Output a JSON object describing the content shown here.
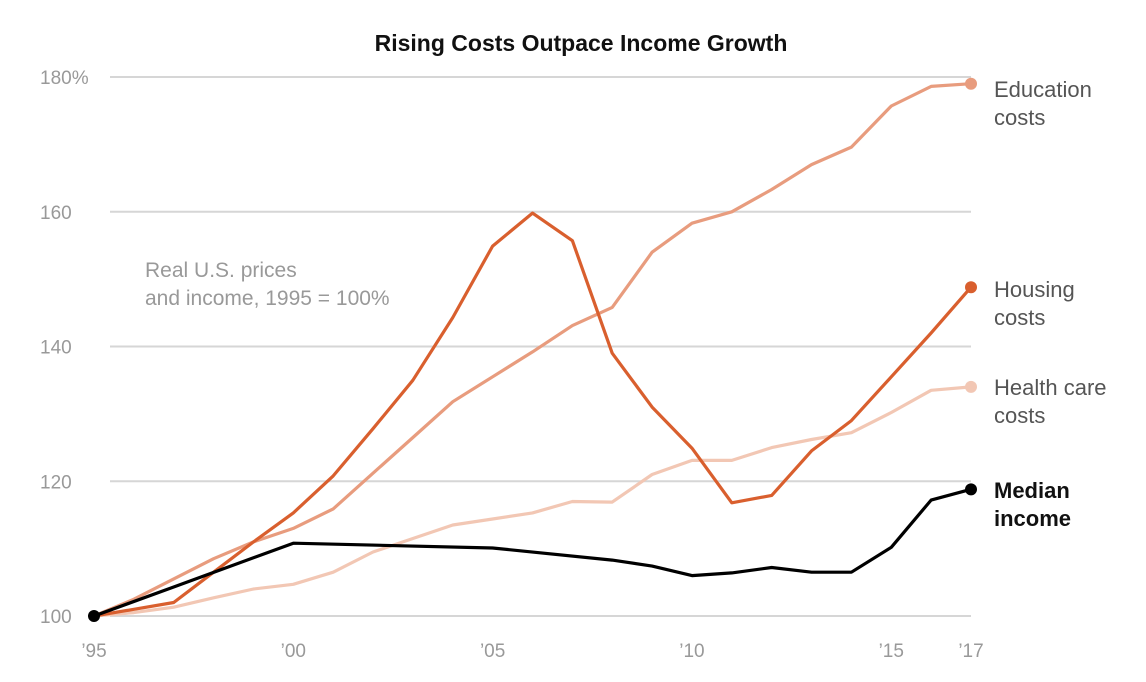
{
  "chart_data": {
    "type": "line",
    "title": "Rising Costs Outpace Income Growth",
    "annotation": [
      "Real U.S. prices",
      "and income, 1995 = 100%"
    ],
    "xlim": [
      1995,
      2017
    ],
    "ylim": [
      100,
      180
    ],
    "x_ticks": [
      {
        "value": 1995,
        "label": "’95"
      },
      {
        "value": 2000,
        "label": "’00"
      },
      {
        "value": 2005,
        "label": "’05"
      },
      {
        "value": 2010,
        "label": "’10"
      },
      {
        "value": 2015,
        "label": "’15"
      },
      {
        "value": 2017,
        "label": "’17"
      }
    ],
    "y_ticks": [
      {
        "value": 100,
        "label": "100"
      },
      {
        "value": 120,
        "label": "120"
      },
      {
        "value": 140,
        "label": "140"
      },
      {
        "value": 160,
        "label": "160"
      },
      {
        "value": 180,
        "label": "180%"
      }
    ],
    "grid": true,
    "series": [
      {
        "key": "health",
        "label_lines": [
          "Health care",
          "costs"
        ],
        "color": "#f2c7b4",
        "label_bold": false,
        "x": [
          1995,
          1996,
          1997,
          1998,
          1999,
          2000,
          2001,
          2002,
          2003,
          2004,
          2005,
          2006,
          2007,
          2008,
          2009,
          2010,
          2011,
          2012,
          2013,
          2014,
          2015,
          2016,
          2017
        ],
        "y": [
          100,
          100.5,
          101.3,
          102.7,
          104,
          104.7,
          106.5,
          109.5,
          111.5,
          113.5,
          114.4,
          115.3,
          117,
          116.9,
          121,
          123.1,
          123.1,
          125,
          126.2,
          127.2,
          130.2,
          133.5,
          134
        ]
      },
      {
        "key": "education",
        "label_lines": [
          "Education",
          "costs"
        ],
        "color": "#e89c7e",
        "label_bold": false,
        "x": [
          1995,
          1996,
          1997,
          1998,
          1999,
          2000,
          2001,
          2002,
          2003,
          2004,
          2005,
          2006,
          2007,
          2008,
          2009,
          2010,
          2011,
          2012,
          2013,
          2014,
          2015,
          2016,
          2017
        ],
        "y": [
          100,
          102.5,
          105.5,
          108.5,
          111,
          113,
          115.9,
          121.2,
          126.5,
          131.8,
          135.5,
          139.2,
          143.1,
          145.8,
          154,
          158.3,
          160,
          163.3,
          167,
          169.6,
          175.7,
          178.6,
          179
        ]
      },
      {
        "key": "housing",
        "label_lines": [
          "Housing",
          "costs"
        ],
        "color": "#d95f2e",
        "label_bold": false,
        "x": [
          1995,
          1996,
          1997,
          1998,
          1999,
          2000,
          2001,
          2002,
          2003,
          2004,
          2005,
          2006,
          2007,
          2008,
          2009,
          2010,
          2011,
          2012,
          2013,
          2014,
          2015,
          2016,
          2017
        ],
        "y": [
          100,
          101,
          102,
          106.5,
          111,
          115.3,
          120.8,
          127.8,
          135,
          144.3,
          154.9,
          159.8,
          155.7,
          139,
          131,
          124.9,
          116.8,
          117.9,
          124.5,
          129,
          135.5,
          142,
          148.8
        ]
      },
      {
        "key": "income",
        "label_lines": [
          "Median",
          "income"
        ],
        "color": "#000000",
        "label_bold": true,
        "x": [
          1995,
          1997,
          2000,
          2005,
          2008,
          2009,
          2010,
          2011,
          2012,
          2013,
          2014,
          2015,
          2016,
          2017
        ],
        "y": [
          100,
          104.3,
          110.8,
          110.1,
          108.3,
          107.4,
          106,
          106.4,
          107.2,
          106.5,
          106.5,
          110.2,
          117.2,
          118.8
        ]
      }
    ]
  }
}
